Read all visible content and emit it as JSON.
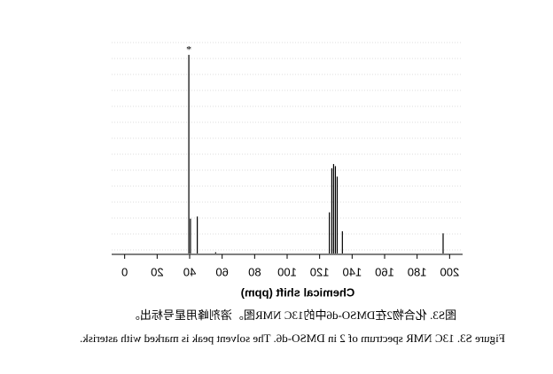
{
  "chart_data": {
    "type": "spectrum",
    "xlabel": "Chemical shift (ppm)",
    "x": [
      39.5,
      40.5,
      44.7,
      56,
      126,
      127.5,
      128.6,
      129.7,
      130.8,
      134,
      196
    ],
    "values": [
      0.95,
      0.17,
      0.18,
      0.01,
      0.2,
      0.41,
      0.43,
      0.42,
      0.37,
      0.11,
      0.1
    ],
    "color": "#000000",
    "xlim": [
      -8,
      208
    ],
    "xticks": [
      0,
      20,
      40,
      60,
      80,
      100,
      120,
      140,
      160,
      180,
      200
    ],
    "ylim": [
      0,
      1
    ],
    "grid": true,
    "annotation": {
      "text": "*",
      "x": 39.5
    },
    "caption_cn": "图S3. 化合物2在DMSO-d6中的13C NMR图。溶剂峰用星号标出。",
    "caption_en": "Figure S3. 13C NMR spectrum of 2 in DMSO-d6. The solvent peak is marked with asterisk.",
    "mirrored": true
  }
}
